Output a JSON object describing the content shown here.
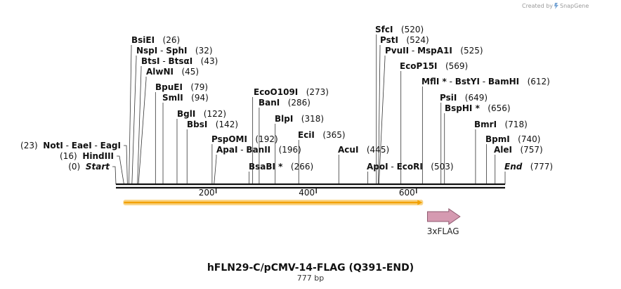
{
  "credit": {
    "text": "Created by",
    "brand": "SnapGene"
  },
  "map": {
    "length": 777,
    "ticks": [
      200,
      400,
      600
    ]
  },
  "sites": [
    {
      "id": "bsiei",
      "pos": 26,
      "names": [
        "BsiEI"
      ],
      "coord": "(26)"
    },
    {
      "id": "nspi",
      "pos": 32,
      "names": [
        "NspI",
        "SphI"
      ],
      "coord": "(32)"
    },
    {
      "id": "btsi",
      "pos": 43,
      "names": [
        "BtsI",
        "BtsαI"
      ],
      "coord": "(43)"
    },
    {
      "id": "alwni",
      "pos": 45,
      "names": [
        "AlwNI"
      ],
      "coord": "(45)"
    },
    {
      "id": "bpuei",
      "pos": 79,
      "names": [
        "BpuEI"
      ],
      "coord": "(79)"
    },
    {
      "id": "smli",
      "pos": 94,
      "names": [
        "SmlI"
      ],
      "coord": "(94)"
    },
    {
      "id": "bgli",
      "pos": 122,
      "names": [
        "BglI"
      ],
      "coord": "(122)"
    },
    {
      "id": "bbsi",
      "pos": 142,
      "names": [
        "BbsI"
      ],
      "coord": "(142)"
    },
    {
      "id": "pspomi",
      "pos": 192,
      "names": [
        "PspOMI"
      ],
      "coord": "(192)"
    },
    {
      "id": "apai",
      "pos": 196,
      "names": [
        "ApaI",
        "BanII"
      ],
      "coord": "(196)"
    },
    {
      "id": "ecoo109i",
      "pos": 273,
      "names": [
        "EcoO109I"
      ],
      "coord": "(273)"
    },
    {
      "id": "bani",
      "pos": 286,
      "names": [
        "BanI"
      ],
      "coord": "(286)"
    },
    {
      "id": "bsabi",
      "pos": 266,
      "names": [
        "BsaBI *"
      ],
      "coord": "(266)"
    },
    {
      "id": "blpi",
      "pos": 318,
      "names": [
        "BlpI"
      ],
      "coord": "(318)"
    },
    {
      "id": "ecii",
      "pos": 365,
      "names": [
        "EciI"
      ],
      "coord": "(365)"
    },
    {
      "id": "acui",
      "pos": 445,
      "names": [
        "AcuI"
      ],
      "coord": "(445)"
    },
    {
      "id": "sfci",
      "pos": 520,
      "names": [
        "SfcI"
      ],
      "coord": "(520)"
    },
    {
      "id": "psti",
      "pos": 524,
      "names": [
        "PstI"
      ],
      "coord": "(524)"
    },
    {
      "id": "pvuii",
      "pos": 525,
      "names": [
        "PvuII",
        "MspA1I"
      ],
      "coord": "(525)"
    },
    {
      "id": "apoi",
      "pos": 503,
      "names": [
        "ApoI",
        "EcoRI"
      ],
      "coord": "(503)"
    },
    {
      "id": "ecop15i",
      "pos": 569,
      "names": [
        "EcoP15I"
      ],
      "coord": "(569)"
    },
    {
      "id": "mfli",
      "pos": 612,
      "names": [
        "MflI *",
        "BstYI",
        "BamHI"
      ],
      "coord": "(612)"
    },
    {
      "id": "psii",
      "pos": 649,
      "names": [
        "PsiI"
      ],
      "coord": "(649)"
    },
    {
      "id": "bsphi",
      "pos": 656,
      "names": [
        "BspHI *"
      ],
      "coord": "(656)"
    },
    {
      "id": "bmri",
      "pos": 718,
      "names": [
        "BmrI"
      ],
      "coord": "(718)"
    },
    {
      "id": "bpmi",
      "pos": 740,
      "names": [
        "BpmI"
      ],
      "coord": "(740)"
    },
    {
      "id": "alei",
      "pos": 757,
      "names": [
        "AleI"
      ],
      "coord": "(757)"
    },
    {
      "id": "end",
      "pos": 777,
      "names": [
        "End"
      ],
      "coord": "(777)"
    },
    {
      "id": "noti",
      "pos": 23,
      "names": [
        "NotI",
        "EaeI",
        "EagI"
      ],
      "coord": "(23)"
    },
    {
      "id": "hindiii",
      "pos": 16,
      "names": [
        "HindIII"
      ],
      "coord": "(16)"
    },
    {
      "id": "start",
      "pos": 0,
      "names": [
        "Start"
      ],
      "coord": "(0)"
    }
  ],
  "features": [
    {
      "id": "orf",
      "name": "",
      "start": 16,
      "end": 612,
      "color": "#f2a100",
      "outline": "#f9d58a"
    },
    {
      "id": "flag",
      "name": "3xFLAG",
      "start": 622,
      "end": 687,
      "color": "#d59ab1"
    }
  ],
  "title": "hFLN29-C/pCMV-14-FLAG (Q391-END)",
  "subtitle": "777 bp"
}
